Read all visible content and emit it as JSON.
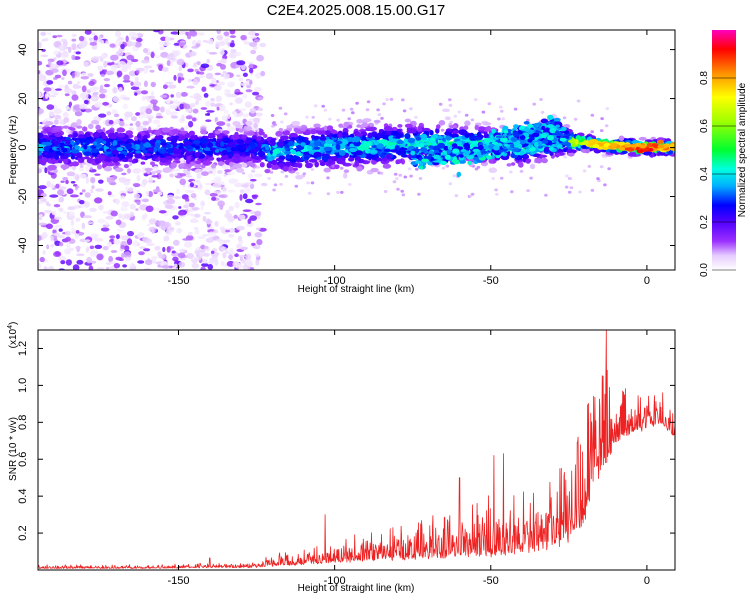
{
  "figure": {
    "title": "C2E4.2025.008.15.00.G17"
  },
  "colormap": [
    {
      "stop": 0.0,
      "color": "#ffffff"
    },
    {
      "stop": 0.06,
      "color": "#e6ccff"
    },
    {
      "stop": 0.12,
      "color": "#9b30ff"
    },
    {
      "stop": 0.2,
      "color": "#5200ff"
    },
    {
      "stop": 0.27,
      "color": "#0000ff"
    },
    {
      "stop": 0.35,
      "color": "#00b0ff"
    },
    {
      "stop": 0.42,
      "color": "#00ffe0"
    },
    {
      "stop": 0.5,
      "color": "#00ff30"
    },
    {
      "stop": 0.62,
      "color": "#a0ff00"
    },
    {
      "stop": 0.72,
      "color": "#ffff00"
    },
    {
      "stop": 0.82,
      "color": "#ff9000"
    },
    {
      "stop": 0.92,
      "color": "#ff0000"
    },
    {
      "stop": 1.0,
      "color": "#ff00c0"
    }
  ],
  "chart_data": [
    {
      "type": "heatmap",
      "title": "C2E4.2025.008.15.00.G17",
      "xlabel": "Height of straight line (km)",
      "ylabel": "Frequency (Hz)",
      "xlim": [
        -195,
        9
      ],
      "ylim": [
        -50,
        48
      ],
      "xticks": [
        -150,
        -100,
        -50,
        0
      ],
      "yticks": [
        -40,
        -20,
        0,
        20,
        40
      ],
      "colorbar": {
        "label": "Normalized spectral amplitude",
        "range": [
          0,
          1
        ],
        "ticks": [
          "0.0",
          "0.2",
          "0.4",
          "0.6",
          "0.8"
        ],
        "tick_values": [
          0,
          0.2,
          0.4,
          0.6,
          0.8
        ]
      },
      "ridge": [
        {
          "x": -195,
          "y": 0,
          "width": 6,
          "amp": 0.35
        },
        {
          "x": -160,
          "y": 0,
          "width": 6,
          "amp": 0.3
        },
        {
          "x": -124,
          "y": 0,
          "width": 5,
          "amp": 0.3
        },
        {
          "x": -122,
          "y": -2,
          "width": 6,
          "amp": 0.38
        },
        {
          "x": -100,
          "y": 0,
          "width": 6,
          "amp": 0.4
        },
        {
          "x": -80,
          "y": 1,
          "width": 6,
          "amp": 0.42
        },
        {
          "x": -65,
          "y": 2,
          "width": 5,
          "amp": 0.45
        },
        {
          "x": -50,
          "y": 1,
          "width": 5,
          "amp": 0.45
        },
        {
          "x": -40,
          "y": 0,
          "width": 5,
          "amp": 0.45
        },
        {
          "x": -30,
          "y": 3,
          "width": 5,
          "amp": 0.5
        },
        {
          "x": -20,
          "y": 2,
          "width": 2,
          "amp": 0.75
        },
        {
          "x": -10,
          "y": 0.5,
          "width": 2,
          "amp": 0.85
        },
        {
          "x": 0,
          "y": 0,
          "width": 2,
          "amp": 0.95
        },
        {
          "x": 9,
          "y": 0,
          "width": 2,
          "amp": 0.8
        }
      ],
      "branches": [
        {
          "x0": -75,
          "x1": -25,
          "y0": -5,
          "y1": 4,
          "width": 3,
          "amp": 0.4
        },
        {
          "x0": -50,
          "x1": -28,
          "y0": 2,
          "y1": 8,
          "width": 3,
          "amp": 0.38
        }
      ],
      "scatter_region": {
        "x0": -195,
        "x1": -123,
        "y0": -50,
        "y1": 48,
        "amp_max": 0.2
      }
    },
    {
      "type": "line",
      "xlabel": "Height of straight line (km)",
      "ylabel": "SNR (10 * v/v)",
      "y_multiplier": "(x10",
      "y_multiplier_exp": "4",
      "y_multiplier_close": ")",
      "xlim": [
        -195,
        9
      ],
      "ylim": [
        0,
        1.3
      ],
      "xticks": [
        -150,
        -100,
        -50,
        0
      ],
      "yticks": [
        0.2,
        0.4,
        0.6,
        0.8,
        1.0,
        1.2
      ],
      "ytick_labels": [
        "0.2",
        "0.4",
        "0.6",
        "0.8",
        "1.0",
        "1.2"
      ],
      "color": "#ee2222",
      "envelope": {
        "x": [
          -195,
          -160,
          -140,
          -125,
          -120,
          -110,
          -100,
          -90,
          -80,
          -70,
          -60,
          -50,
          -40,
          -30,
          -22,
          -20,
          -18,
          -15,
          -12,
          -10,
          -5,
          0,
          5,
          9
        ],
        "base": [
          0.01,
          0.01,
          0.015,
          0.015,
          0.025,
          0.035,
          0.05,
          0.06,
          0.07,
          0.08,
          0.09,
          0.1,
          0.12,
          0.15,
          0.22,
          0.3,
          0.45,
          0.55,
          0.65,
          0.72,
          0.75,
          0.78,
          0.8,
          0.72
        ],
        "spread": [
          0.02,
          0.02,
          0.025,
          0.03,
          0.07,
          0.08,
          0.12,
          0.15,
          0.18,
          0.22,
          0.28,
          0.32,
          0.35,
          0.4,
          0.5,
          0.55,
          0.55,
          0.55,
          0.45,
          0.3,
          0.22,
          0.18,
          0.14,
          0.12
        ]
      },
      "peaks": [
        {
          "x": -140,
          "y": 0.065
        },
        {
          "x": -103,
          "y": 0.3
        },
        {
          "x": -60,
          "y": 0.5
        },
        {
          "x": -49,
          "y": 0.62
        },
        {
          "x": -46,
          "y": 0.63
        },
        {
          "x": -22,
          "y": 0.72
        },
        {
          "x": -18,
          "y": 0.85
        },
        {
          "x": -15,
          "y": 0.88
        },
        {
          "x": -13,
          "y": 1.3
        },
        {
          "x": -14,
          "y": 1.05
        },
        {
          "x": -8,
          "y": 0.9
        },
        {
          "x": 5,
          "y": 0.96
        }
      ]
    }
  ]
}
